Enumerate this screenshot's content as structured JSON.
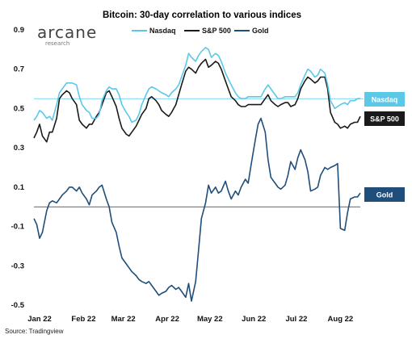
{
  "logo": {
    "word": "arcane",
    "sub": "research"
  },
  "source": "Source: Tradingview",
  "chart_data": {
    "type": "line",
    "title": "Bitcoin: 30-day correlation to various indices",
    "ylim": [
      -0.5,
      0.9
    ],
    "y_ticks": [
      0.9,
      0.7,
      0.5,
      0.3,
      0.1,
      -0.1,
      -0.3,
      -0.5
    ],
    "x_tick_labels": [
      "Jan 22",
      "Feb 22",
      "Mar 22",
      "Apr 22",
      "May 22",
      "Jun 22",
      "Jul 22",
      "Aug 22"
    ],
    "x": [
      "2022-01-01",
      "2022-01-03",
      "2022-01-05",
      "2022-01-07",
      "2022-01-10",
      "2022-01-12",
      "2022-01-14",
      "2022-01-17",
      "2022-01-19",
      "2022-01-21",
      "2022-01-24",
      "2022-01-26",
      "2022-01-28",
      "2022-01-31",
      "2022-02-02",
      "2022-02-04",
      "2022-02-07",
      "2022-02-09",
      "2022-02-11",
      "2022-02-14",
      "2022-02-16",
      "2022-02-18",
      "2022-02-21",
      "2022-02-23",
      "2022-02-25",
      "2022-02-28",
      "2022-03-02",
      "2022-03-04",
      "2022-03-07",
      "2022-03-09",
      "2022-03-11",
      "2022-03-14",
      "2022-03-16",
      "2022-03-18",
      "2022-03-21",
      "2022-03-23",
      "2022-03-25",
      "2022-03-28",
      "2022-03-30",
      "2022-04-01",
      "2022-04-04",
      "2022-04-06",
      "2022-04-08",
      "2022-04-11",
      "2022-04-13",
      "2022-04-15",
      "2022-04-18",
      "2022-04-20",
      "2022-04-22",
      "2022-04-25",
      "2022-04-27",
      "2022-04-29",
      "2022-05-02",
      "2022-05-04",
      "2022-05-06",
      "2022-05-09",
      "2022-05-11",
      "2022-05-13",
      "2022-05-16",
      "2022-05-18",
      "2022-05-20",
      "2022-05-23",
      "2022-05-25",
      "2022-05-27",
      "2022-05-30",
      "2022-06-01",
      "2022-06-03",
      "2022-06-06",
      "2022-06-08",
      "2022-06-10",
      "2022-06-13",
      "2022-06-15",
      "2022-06-17",
      "2022-06-20",
      "2022-06-22",
      "2022-06-24",
      "2022-06-27",
      "2022-06-29",
      "2022-07-01",
      "2022-07-04",
      "2022-07-06",
      "2022-07-08",
      "2022-07-11",
      "2022-07-13",
      "2022-07-15",
      "2022-07-18",
      "2022-07-20",
      "2022-07-22",
      "2022-07-25",
      "2022-07-27",
      "2022-07-29",
      "2022-08-01",
      "2022-08-03",
      "2022-08-05",
      "2022-08-08",
      "2022-08-10",
      "2022-08-12",
      "2022-08-15",
      "2022-08-17",
      "2022-08-19"
    ],
    "series": [
      {
        "name": "Nasdaq",
        "color": "#5bc8e8",
        "end_tag": "Nasdaq",
        "values": [
          0.44,
          0.46,
          0.49,
          0.48,
          0.45,
          0.46,
          0.44,
          0.52,
          0.58,
          0.6,
          0.63,
          0.63,
          0.63,
          0.62,
          0.56,
          0.52,
          0.49,
          0.48,
          0.45,
          0.45,
          0.47,
          0.54,
          0.59,
          0.61,
          0.6,
          0.6,
          0.57,
          0.52,
          0.48,
          0.46,
          0.43,
          0.44,
          0.47,
          0.52,
          0.57,
          0.6,
          0.61,
          0.6,
          0.59,
          0.58,
          0.57,
          0.56,
          0.58,
          0.6,
          0.62,
          0.66,
          0.72,
          0.78,
          0.76,
          0.74,
          0.77,
          0.79,
          0.81,
          0.8,
          0.76,
          0.78,
          0.77,
          0.74,
          0.68,
          0.65,
          0.62,
          0.58,
          0.56,
          0.55,
          0.55,
          0.56,
          0.56,
          0.56,
          0.56,
          0.56,
          0.6,
          0.62,
          0.6,
          0.57,
          0.55,
          0.55,
          0.56,
          0.56,
          0.56,
          0.56,
          0.58,
          0.62,
          0.67,
          0.7,
          0.69,
          0.66,
          0.67,
          0.7,
          0.68,
          0.62,
          0.54,
          0.5,
          0.51,
          0.52,
          0.53,
          0.52,
          0.54,
          0.54,
          0.55,
          0.55
        ]
      },
      {
        "name": "S&P 500",
        "color": "#1a1a1a",
        "end_tag": "S&P 500",
        "values": [
          0.35,
          0.38,
          0.42,
          0.36,
          0.33,
          0.38,
          0.38,
          0.45,
          0.55,
          0.57,
          0.59,
          0.58,
          0.55,
          0.52,
          0.44,
          0.42,
          0.4,
          0.42,
          0.42,
          0.46,
          0.48,
          0.52,
          0.58,
          0.59,
          0.56,
          0.51,
          0.45,
          0.4,
          0.37,
          0.36,
          0.38,
          0.41,
          0.44,
          0.47,
          0.5,
          0.55,
          0.56,
          0.54,
          0.52,
          0.49,
          0.47,
          0.46,
          0.48,
          0.52,
          0.57,
          0.62,
          0.69,
          0.71,
          0.7,
          0.68,
          0.71,
          0.73,
          0.75,
          0.71,
          0.72,
          0.74,
          0.73,
          0.7,
          0.64,
          0.6,
          0.56,
          0.54,
          0.52,
          0.51,
          0.51,
          0.52,
          0.52,
          0.52,
          0.52,
          0.52,
          0.55,
          0.57,
          0.54,
          0.52,
          0.51,
          0.52,
          0.53,
          0.53,
          0.51,
          0.52,
          0.55,
          0.6,
          0.64,
          0.66,
          0.65,
          0.63,
          0.64,
          0.66,
          0.66,
          0.6,
          0.48,
          0.43,
          0.42,
          0.4,
          0.41,
          0.4,
          0.42,
          0.43,
          0.43,
          0.46
        ]
      },
      {
        "name": "Gold",
        "color": "#1f4e7a",
        "end_tag": "Gold",
        "values": [
          -0.06,
          -0.09,
          -0.16,
          -0.13,
          -0.02,
          0.02,
          0.03,
          0.02,
          0.04,
          0.06,
          0.08,
          0.1,
          0.1,
          0.08,
          0.1,
          0.07,
          0.04,
          0.01,
          0.06,
          0.08,
          0.1,
          0.11,
          0.04,
          0.0,
          -0.08,
          -0.13,
          -0.2,
          -0.26,
          -0.29,
          -0.31,
          -0.33,
          -0.35,
          -0.37,
          -0.38,
          -0.39,
          -0.38,
          -0.4,
          -0.43,
          -0.45,
          -0.44,
          -0.43,
          -0.41,
          -0.4,
          -0.42,
          -0.41,
          -0.43,
          -0.46,
          -0.39,
          -0.48,
          -0.38,
          -0.22,
          -0.06,
          0.02,
          0.11,
          0.07,
          0.1,
          0.07,
          0.08,
          0.13,
          0.08,
          0.04,
          0.08,
          0.06,
          0.1,
          0.14,
          0.12,
          0.21,
          0.34,
          0.42,
          0.45,
          0.38,
          0.24,
          0.15,
          0.12,
          0.1,
          0.09,
          0.11,
          0.16,
          0.23,
          0.19,
          0.25,
          0.29,
          0.24,
          0.18,
          0.08,
          0.09,
          0.1,
          0.16,
          0.2,
          0.19,
          0.2,
          0.21,
          0.22,
          -0.11,
          -0.12,
          -0.03,
          0.04,
          0.05,
          0.05,
          0.07
        ]
      }
    ],
    "reference_line": {
      "value": 0.55,
      "color": "#5bc8e8"
    },
    "legend_position": "top-center"
  }
}
